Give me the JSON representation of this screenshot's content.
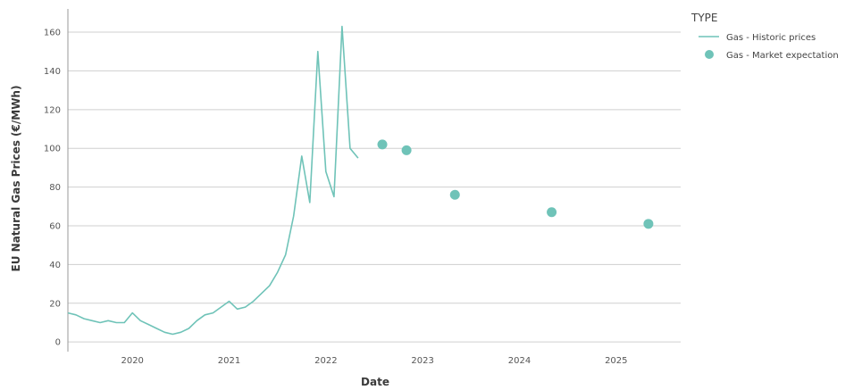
{
  "chart_data": {
    "type": "line",
    "xlabel": "Date",
    "ylabel": "EU Natural Gas Prices (€/MWh)",
    "x_ticks": [
      "2020",
      "2021",
      "2022",
      "2023",
      "2024",
      "2025"
    ],
    "y_ticks": [
      0,
      20,
      40,
      60,
      80,
      100,
      120,
      140,
      160
    ],
    "xlim": [
      "2019-05",
      "2025-09"
    ],
    "ylim": [
      -5,
      172
    ],
    "grid": "horizontal",
    "legend": {
      "title": "TYPE",
      "position": "top-right",
      "entries": [
        {
          "label": "Gas - Historic prices",
          "marker": "line",
          "color": "#6fc3b8"
        },
        {
          "label": "Gas - Market expectation",
          "marker": "circle",
          "color": "#6fc3b8"
        }
      ]
    },
    "series": [
      {
        "name": "Gas - Historic prices",
        "kind": "line",
        "color": "#6fc3b8",
        "points": [
          [
            "2019-05",
            15
          ],
          [
            "2019-06",
            14
          ],
          [
            "2019-07",
            12
          ],
          [
            "2019-08",
            11
          ],
          [
            "2019-09",
            10
          ],
          [
            "2019-10",
            11
          ],
          [
            "2019-11",
            10
          ],
          [
            "2019-12",
            10
          ],
          [
            "2020-01",
            15
          ],
          [
            "2020-02",
            11
          ],
          [
            "2020-03",
            9
          ],
          [
            "2020-04",
            7
          ],
          [
            "2020-05",
            5
          ],
          [
            "2020-06",
            4
          ],
          [
            "2020-07",
            5
          ],
          [
            "2020-08",
            7
          ],
          [
            "2020-09",
            11
          ],
          [
            "2020-10",
            14
          ],
          [
            "2020-11",
            15
          ],
          [
            "2020-12",
            18
          ],
          [
            "2021-01",
            21
          ],
          [
            "2021-02",
            17
          ],
          [
            "2021-03",
            18
          ],
          [
            "2021-04",
            21
          ],
          [
            "2021-05",
            25
          ],
          [
            "2021-06",
            29
          ],
          [
            "2021-07",
            36
          ],
          [
            "2021-08",
            45
          ],
          [
            "2021-09",
            65
          ],
          [
            "2021-10",
            96
          ],
          [
            "2021-11",
            72
          ],
          [
            "2021-12",
            150
          ],
          [
            "2022-01",
            88
          ],
          [
            "2022-02",
            75
          ],
          [
            "2022-03",
            163
          ],
          [
            "2022-04",
            100
          ],
          [
            "2022-05",
            95
          ]
        ]
      },
      {
        "name": "Gas - Market expectation",
        "kind": "scatter",
        "color": "#6fc3b8",
        "points": [
          [
            "2022-08",
            102
          ],
          [
            "2022-11",
            99
          ],
          [
            "2023-05",
            76
          ],
          [
            "2024-05",
            67
          ],
          [
            "2025-05",
            61
          ]
        ]
      }
    ]
  },
  "colors": {
    "series": "#6fc3b8",
    "grid": "#cfcfcf",
    "axis": "#999999"
  }
}
